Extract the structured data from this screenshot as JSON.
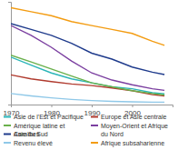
{
  "chart_data": {
    "type": "line",
    "x": [
      1970,
      1975,
      1980,
      1985,
      1990,
      1995,
      2000,
      2005,
      2008
    ],
    "xlim": [
      1970,
      2010
    ],
    "xticks": [
      1970,
      1980,
      1990,
      2000
    ],
    "ylim": [
      0,
      260
    ],
    "tick_labels": "x",
    "legend": "bottom",
    "series": [
      {
        "name": "Asie de l'Est et Pacifique",
        "color": "#2bb5b8",
        "values": [
          120,
          100,
          80,
          65,
          55,
          45,
          40,
          30,
          27
        ]
      },
      {
        "name": "Europe et Asie centrale",
        "color": "#b03a2e",
        "values": [
          75,
          65,
          58,
          52,
          48,
          42,
          35,
          25,
          22
        ]
      },
      {
        "name": "Amérique latine et Caraïbes",
        "color": "#6ab04c",
        "values": [
          125,
          108,
          90,
          72,
          55,
          45,
          35,
          28,
          24
        ]
      },
      {
        "name": "Moyen-Orient et Afrique du Nord",
        "color": "#7b3fa0",
        "values": [
          200,
          175,
          145,
          110,
          80,
          62,
          50,
          40,
          36
        ]
      },
      {
        "name": "Asie du Sud",
        "color": "#1f3b8c",
        "values": [
          205,
          190,
          175,
          155,
          130,
          115,
          95,
          82,
          76
        ]
      },
      {
        "name": "Afrique subsaharienne",
        "color": "#f39c12",
        "values": [
          245,
          235,
          225,
          210,
          200,
          190,
          180,
          160,
          150
        ]
      },
      {
        "name": "Revenu élevé",
        "color": "#8fc8e8",
        "values": [
          28,
          22,
          17,
          13,
          10,
          8,
          7,
          6,
          6
        ]
      }
    ]
  }
}
